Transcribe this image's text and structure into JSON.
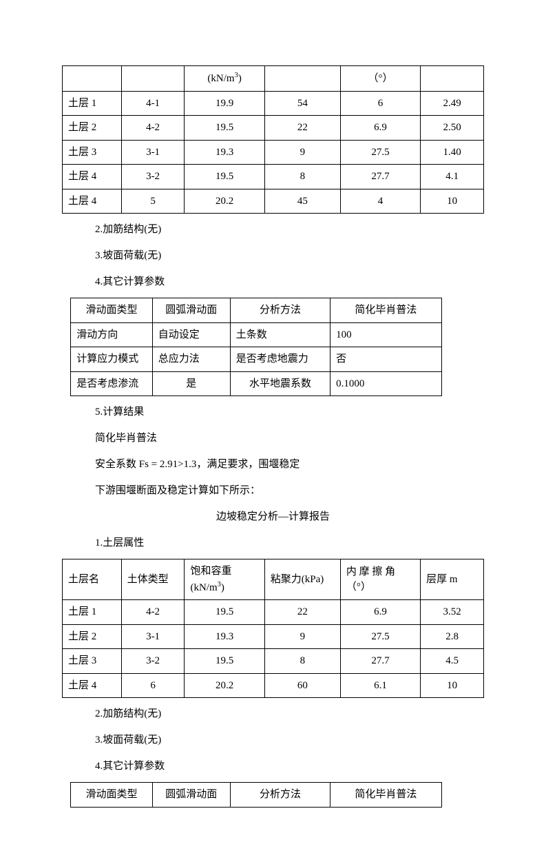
{
  "table1": {
    "header_unit_col3": "(kN/m",
    "header_unit_col3_sup": "3",
    "header_unit_col3_close": ")",
    "header_unit_col5": "（°）",
    "rows": [
      {
        "name": "土层 1",
        "type": "4-1",
        "w": "19.9",
        "c": "54",
        "phi": "6",
        "h": "2.49"
      },
      {
        "name": "土层 2",
        "type": "4-2",
        "w": "19.5",
        "c": "22",
        "phi": "6.9",
        "h": "2.50"
      },
      {
        "name": "土层 3",
        "type": "3-1",
        "w": "19.3",
        "c": "9",
        "phi": "27.5",
        "h": "1.40"
      },
      {
        "name": "土层 4",
        "type": "3-2",
        "w": "19.5",
        "c": "8",
        "phi": "27.7",
        "h": "4.1"
      },
      {
        "name": "土层 4",
        "type": "5",
        "w": "20.2",
        "c": "45",
        "phi": "4",
        "h": "10"
      }
    ]
  },
  "sec1": {
    "p2": "2.加筋结构(无)",
    "p3": "3.坡面荷载(无)",
    "p4": "4.其它计算参数"
  },
  "table2": {
    "rows": [
      {
        "a": "滑动面类型",
        "b": "圆弧滑动面",
        "c": "分析方法",
        "d": "简化毕肖普法"
      },
      {
        "a": "滑动方向",
        "b": "自动设定",
        "c": "土条数",
        "d": "100"
      },
      {
        "a": "计算应力模式",
        "b": "总应力法",
        "c": "是否考虑地震力",
        "d": "否"
      },
      {
        "a": "是否考虑渗流",
        "b": "是",
        "c": "水平地震系数",
        "d": "0.1000"
      }
    ]
  },
  "sec2": {
    "p5": "5.计算结果",
    "p6": "简化毕肖普法",
    "p7": "安全系数 Fs = 2.91>1.3，满足要求，围堰稳定",
    "p8": "下游围堰断面及稳定计算如下所示：",
    "title": "边坡稳定分析—计算报告",
    "p9": "1.土层属性"
  },
  "table3": {
    "headers": {
      "c1": "土层名",
      "c2": "土体类型",
      "c3a": "饱和容重",
      "c3b": "(kN/m",
      "c3sup": "3",
      "c3c": ")",
      "c4": "粘聚力(kPa)",
      "c5a": "内 摩 擦 角",
      "c5b": "（°）",
      "c6": "层厚 m"
    },
    "rows": [
      {
        "name": "土层 1",
        "type": "4-2",
        "w": "19.5",
        "c": "22",
        "phi": "6.9",
        "h": "3.52"
      },
      {
        "name": "土层 2",
        "type": "3-1",
        "w": "19.3",
        "c": "9",
        "phi": "27.5",
        "h": "2.8"
      },
      {
        "name": "土层 3",
        "type": "3-2",
        "w": "19.5",
        "c": "8",
        "phi": "27.7",
        "h": "4.5"
      },
      {
        "name": "土层 4",
        "type": "6",
        "w": "20.2",
        "c": "60",
        "phi": "6.1",
        "h": "10"
      }
    ]
  },
  "sec3": {
    "p2": "2.加筋结构(无)",
    "p3": "3.坡面荷载(无)",
    "p4": "4.其它计算参数"
  },
  "table4": {
    "row": {
      "a": "滑动面类型",
      "b": "圆弧滑动面",
      "c": "分析方法",
      "d": "简化毕肖普法"
    }
  }
}
